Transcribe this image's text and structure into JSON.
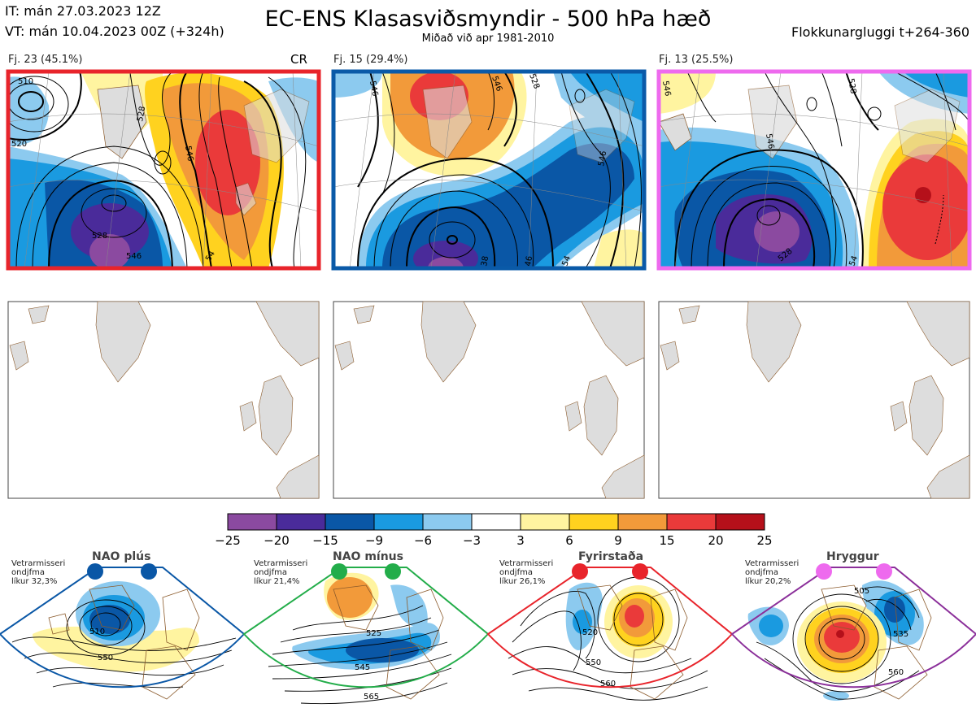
{
  "header": {
    "it": "IT: mán 27.03.2023 12Z",
    "vt": "VT: mán 10.04.2023 00Z  (+324h)",
    "title": "EC-ENS Klasasviðsmyndir - 500 hPa hæð",
    "subtitle": "Miðað við apr 1981-2010",
    "window": "Flokkunargluggi t+264-360"
  },
  "clusters": [
    {
      "label": "Fj. 23 (45.1%)",
      "tag": "CR",
      "border": "#e8242b",
      "contours": [
        "510",
        "520",
        "528",
        "546",
        "528",
        "546",
        "54"
      ]
    },
    {
      "label": "Fj. 15 (29.4%)",
      "tag": "",
      "border": "#0a5aa8",
      "contours": [
        "546",
        "528",
        "546",
        "546",
        "38",
        "46",
        "54"
      ]
    },
    {
      "label": "Fj. 13 (25.5%)",
      "tag": "",
      "border": "#ee6aee",
      "contours": [
        "546",
        "528",
        "546",
        "528",
        "54"
      ]
    }
  ],
  "colorbar": {
    "ticks": [
      "−25",
      "−20",
      "−15",
      "−9",
      "−6",
      "−3",
      "3",
      "6",
      "9",
      "15",
      "20",
      "25"
    ],
    "colors": [
      "#8b4aa0",
      "#4a2b9a",
      "#0a57a6",
      "#1a9ae0",
      "#8ccaef",
      "#ffffff",
      "#fff4a0",
      "#ffd21f",
      "#f29a3a",
      "#ea3a3a",
      "#b5101a"
    ]
  },
  "regimes": [
    {
      "name": "NAO plús",
      "winter": [
        "Vetrarmisseri",
        "ondjfma",
        "líkur 32,3%"
      ],
      "color": "#0a57a6",
      "contours": [
        "510",
        "550"
      ]
    },
    {
      "name": "NAO mínus",
      "winter": [
        "Vetrarmisseri",
        "ondjfma",
        "líkur 21,4%"
      ],
      "color": "#23ad4a",
      "contours": [
        "525",
        "545",
        "565"
      ]
    },
    {
      "name": "Fyrirstaða",
      "winter": [
        "Vetrarmisseri",
        "ondjfma",
        "líkur 26,1%"
      ],
      "color": "#e8242b",
      "contours": [
        "520",
        "550",
        "560"
      ]
    },
    {
      "name": "Hryggur",
      "winter": [
        "Vetrarmisseri",
        "ondjfma",
        "líkur 20,2%"
      ],
      "color": "#ee6aee",
      "contours": [
        "505",
        "535",
        "560"
      ]
    }
  ]
}
